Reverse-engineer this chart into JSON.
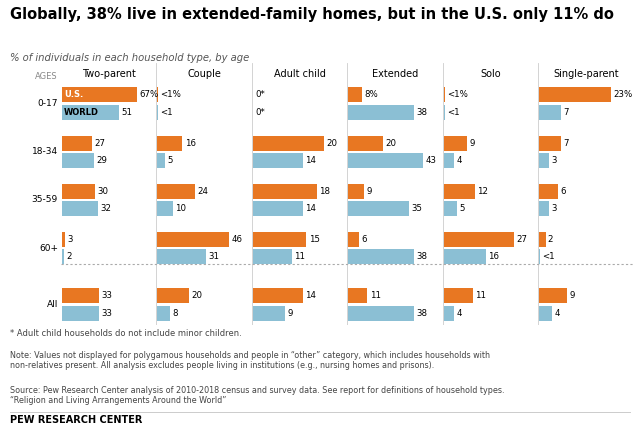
{
  "title": "Globally, 38% live in extended-family homes, but in the U.S. only 11% do",
  "subtitle": "% of individuals in each household type, by age",
  "color_us": "#E87722",
  "color_world": "#8BBfd4",
  "categories": [
    "Two-parent",
    "Couple",
    "Adult child",
    "Extended",
    "Solo",
    "Single-parent"
  ],
  "age_groups": [
    "0-17",
    "18-34",
    "35-59",
    "60+",
    "All"
  ],
  "us_values": [
    [
      67,
      0.3,
      0.0,
      8,
      0.3,
      23
    ],
    [
      27,
      16,
      20,
      20,
      9,
      7
    ],
    [
      30,
      24,
      18,
      9,
      12,
      6
    ],
    [
      3,
      46,
      15,
      6,
      27,
      2
    ],
    [
      33,
      20,
      14,
      11,
      11,
      9
    ]
  ],
  "world_values": [
    [
      51,
      0.3,
      0.0,
      38,
      0.3,
      7
    ],
    [
      29,
      5,
      14,
      43,
      4,
      3
    ],
    [
      32,
      10,
      14,
      35,
      5,
      3
    ],
    [
      2,
      31,
      11,
      38,
      16,
      0.3
    ],
    [
      33,
      8,
      9,
      38,
      4,
      4
    ]
  ],
  "us_labels": [
    [
      "67%",
      "<1%",
      "0*",
      "8%",
      "<1%",
      "23%"
    ],
    [
      "27",
      "16",
      "20",
      "20",
      "9",
      "7"
    ],
    [
      "30",
      "24",
      "18",
      "9",
      "12",
      "6"
    ],
    [
      "3",
      "46",
      "15",
      "6",
      "27",
      "2"
    ],
    [
      "33",
      "20",
      "14",
      "11",
      "11",
      "9"
    ]
  ],
  "world_labels": [
    [
      "51",
      "<1",
      "0*",
      "38",
      "<1",
      "7"
    ],
    [
      "29",
      "5",
      "14",
      "43",
      "4",
      "3"
    ],
    [
      "32",
      "10",
      "14",
      "35",
      "5",
      "3"
    ],
    [
      "2",
      "31",
      "11",
      "38",
      "16",
      "<1"
    ],
    [
      "33",
      "8",
      "9",
      "38",
      "4",
      "4"
    ]
  ],
  "col_maxvals": [
    70,
    50,
    22,
    45,
    30,
    25
  ],
  "footnote1": "* Adult child households do not include minor children.",
  "footnote2": "Note: Values not displayed for polygamous households and people in “other” category, which includes households with\nnon-relatives present. All analysis excludes people living in institutions (e.g., nursing homes and prisons).",
  "footnote3": "Source: Pew Research Center analysis of 2010-2018 census and survey data. See report for definitions of household types.\n“Religion and Living Arrangements Around the World”",
  "footer": "PEW RESEARCH CENTER"
}
